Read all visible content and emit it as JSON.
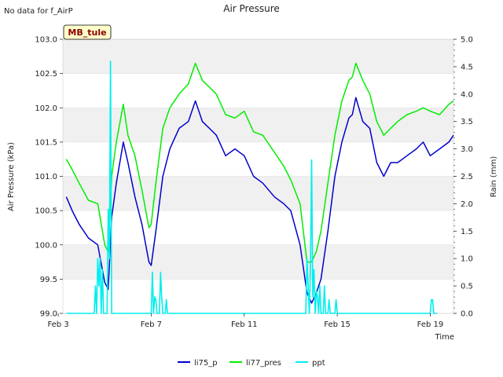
{
  "page": {
    "note": "No data for f_AirP",
    "station_badge": "MB_tule"
  },
  "colors": {
    "li75_p": "#0000cc",
    "li77_pres": "#00ee00",
    "ppt": "#00eeee",
    "band": "#f0f0f0",
    "badge_bg": "#ffffcc",
    "badge_text": "#8b0000"
  },
  "chart_data": {
    "type": "line",
    "title": "Air Pressure",
    "xlabel": "Time",
    "ylabel": "Air Pressure (kPa)",
    "y2label": "Rain (mm)",
    "xlim": [
      3.2,
      20.0
    ],
    "ylim": [
      99.0,
      103.0
    ],
    "y2lim": [
      0.0,
      5.0
    ],
    "x_ticks": [
      3,
      7,
      11,
      15,
      19
    ],
    "x_tick_labels": [
      "Feb 3",
      "Feb 7",
      "Feb 11",
      "Feb 15",
      "Feb 19"
    ],
    "y_tick_labels": [
      "99.0",
      "99.5",
      "100.0",
      "100.5",
      "101.0",
      "101.5",
      "102.0",
      "102.5",
      "103.0"
    ],
    "y2_tick_labels": [
      "0.0",
      "0.5",
      "1.0",
      "1.5",
      "2.0",
      "2.5",
      "3.0",
      "3.5",
      "4.0",
      "4.5",
      "5.0"
    ],
    "legend": [
      "li75_p",
      "li77_pres",
      "ppt"
    ],
    "legend_position": "bottom-center",
    "series": [
      {
        "name": "li75_p",
        "axis": "left",
        "x": [
          3.35,
          3.6,
          3.9,
          4.3,
          4.7,
          5.0,
          5.15,
          5.3,
          5.5,
          5.8,
          6.0,
          6.3,
          6.6,
          6.9,
          7.0,
          7.2,
          7.5,
          7.8,
          8.2,
          8.6,
          8.9,
          9.2,
          9.5,
          9.8,
          10.2,
          10.6,
          11.0,
          11.4,
          11.8,
          12.3,
          12.7,
          13.0,
          13.4,
          13.7,
          13.9,
          14.1,
          14.3,
          14.6,
          14.9,
          15.2,
          15.5,
          15.65,
          15.8,
          16.1,
          16.4,
          16.7,
          17.0,
          17.3,
          17.6,
          18.0,
          18.4,
          18.7,
          19.0,
          19.4,
          19.8,
          20.0
        ],
        "values": [
          100.7,
          100.5,
          100.3,
          100.1,
          100.0,
          99.45,
          99.35,
          100.4,
          100.9,
          101.5,
          101.2,
          100.7,
          100.3,
          99.75,
          99.7,
          100.2,
          101.0,
          101.4,
          101.7,
          101.8,
          102.1,
          101.8,
          101.7,
          101.6,
          101.3,
          101.4,
          101.3,
          101.0,
          100.9,
          100.7,
          100.6,
          100.5,
          100.0,
          99.3,
          99.15,
          99.3,
          99.5,
          100.2,
          101.0,
          101.5,
          101.85,
          101.9,
          102.15,
          101.8,
          101.7,
          101.2,
          101.0,
          101.2,
          101.2,
          101.3,
          101.4,
          101.5,
          101.3,
          101.4,
          101.5,
          101.6
        ]
      },
      {
        "name": "li77_pres",
        "axis": "left",
        "x": [
          3.35,
          3.6,
          3.9,
          4.3,
          4.7,
          5.0,
          5.15,
          5.3,
          5.5,
          5.8,
          6.0,
          6.3,
          6.6,
          6.9,
          7.0,
          7.2,
          7.5,
          7.8,
          8.2,
          8.6,
          8.9,
          9.2,
          9.5,
          9.8,
          10.2,
          10.6,
          11.0,
          11.4,
          11.8,
          12.3,
          12.7,
          13.0,
          13.4,
          13.7,
          13.9,
          14.1,
          14.3,
          14.6,
          14.9,
          15.2,
          15.5,
          15.65,
          15.8,
          16.1,
          16.4,
          16.7,
          17.0,
          17.3,
          17.6,
          18.0,
          18.4,
          18.7,
          19.0,
          19.4,
          19.8,
          20.0
        ],
        "values": [
          101.25,
          101.1,
          100.9,
          100.65,
          100.6,
          100.0,
          99.9,
          101.0,
          101.5,
          102.05,
          101.6,
          101.3,
          100.8,
          100.25,
          100.3,
          100.9,
          101.7,
          102.0,
          102.2,
          102.35,
          102.65,
          102.4,
          102.3,
          102.2,
          101.9,
          101.85,
          101.95,
          101.65,
          101.6,
          101.35,
          101.15,
          100.95,
          100.6,
          99.75,
          99.75,
          99.9,
          100.2,
          100.9,
          101.6,
          102.1,
          102.4,
          102.45,
          102.65,
          102.4,
          102.2,
          101.8,
          101.6,
          101.7,
          101.8,
          101.9,
          101.95,
          102.0,
          101.95,
          101.9,
          102.05,
          102.1
        ]
      },
      {
        "name": "ppt",
        "axis": "right",
        "x": [
          3.35,
          4.55,
          4.6,
          4.65,
          4.7,
          4.75,
          4.8,
          4.85,
          4.9,
          4.95,
          5.0,
          5.1,
          5.15,
          5.2,
          5.25,
          5.3,
          5.35,
          5.4,
          6.0,
          7.0,
          7.05,
          7.1,
          7.15,
          7.2,
          7.25,
          7.35,
          7.4,
          7.45,
          7.5,
          7.6,
          7.65,
          7.7,
          13.65,
          13.7,
          13.75,
          13.8,
          13.85,
          13.9,
          13.95,
          14.0,
          14.05,
          14.1,
          14.15,
          14.2,
          14.25,
          14.3,
          14.4,
          14.45,
          14.5,
          14.6,
          14.65,
          14.7,
          14.75,
          14.9,
          14.95,
          15.0,
          18.9,
          19.0,
          19.05,
          19.1,
          19.15,
          19.2,
          19.3
        ],
        "values": [
          0,
          0,
          0.5,
          0,
          1.0,
          0.5,
          1.0,
          0,
          0.8,
          0,
          0,
          0,
          1.9,
          1.0,
          4.6,
          0,
          0,
          0,
          0,
          0,
          0.75,
          0,
          0.3,
          0.25,
          0,
          0,
          0.75,
          0.3,
          0,
          0,
          0.25,
          0,
          0,
          1.0,
          0.5,
          0,
          0.9,
          2.8,
          0.3,
          0.8,
          0,
          0.4,
          0.3,
          0,
          0.5,
          0,
          0,
          0.5,
          0,
          0,
          0.25,
          0,
          0,
          0,
          0.25,
          0,
          0,
          0,
          0.25,
          0.25,
          0,
          0,
          0
        ]
      }
    ]
  }
}
